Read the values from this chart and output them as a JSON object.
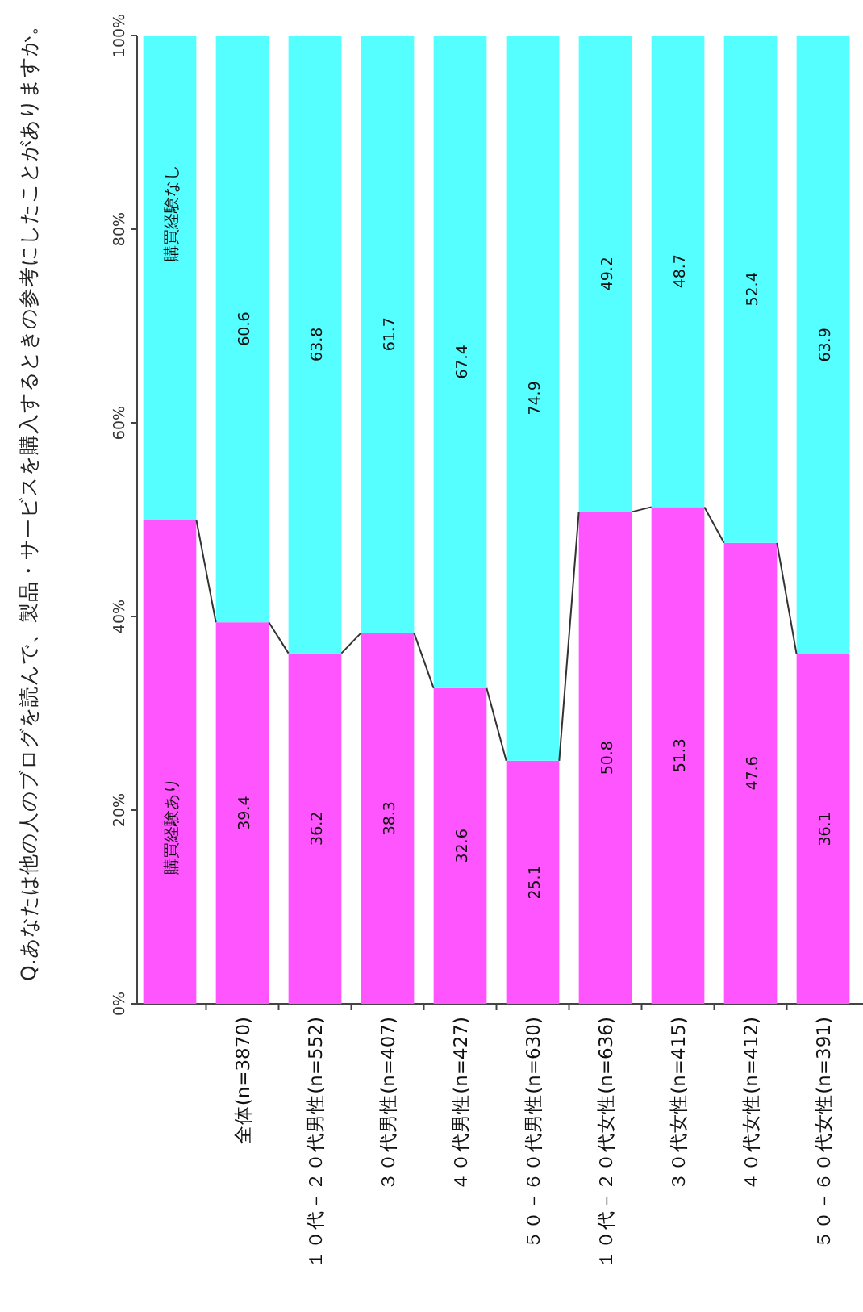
{
  "chart_data": {
    "type": "bar",
    "stacked": true,
    "title": "Q.あなたは他の人のブログを読んで、製品・サービスを購入するときの参考にしたことがありますか。",
    "categories": [
      null,
      "全体(n=3870)",
      "１０代－２０代男性(n=552)",
      "３０代男性(n=407)",
      "４０代男性(n=427)",
      "５０－６０代男性(n=630)",
      "１０代－２０代女性(n=636)",
      "３０代女性(n=415)",
      "４０代女性(n=412)",
      "５０－６０代女性(n=391)"
    ],
    "series": [
      {
        "name": "購買経験あり",
        "color": "#ff55ff",
        "values": [
          50,
          39.4,
          36.2,
          38.3,
          32.6,
          25.1,
          50.8,
          51.3,
          47.6,
          36.1
        ],
        "value_labels": [
          null,
          "39.4",
          "36.2",
          "38.3",
          "32.6",
          "25.1",
          "50.8",
          "51.3",
          "47.6",
          "36.1"
        ]
      },
      {
        "name": "購買経験なし",
        "color": "#55ffff",
        "values": [
          50,
          60.6,
          63.8,
          61.7,
          67.4,
          74.9,
          49.2,
          48.7,
          52.4,
          63.9
        ],
        "value_labels": [
          null,
          "60.6",
          "63.8",
          "61.7",
          "67.4",
          "74.9",
          "49.2",
          "48.7",
          "52.4",
          "63.9"
        ]
      }
    ],
    "ylim": [
      0,
      100
    ],
    "yticks": [
      {
        "value": 0,
        "label": "0%"
      },
      {
        "value": 20,
        "label": "20%"
      },
      {
        "value": 40,
        "label": "40%"
      },
      {
        "value": 60,
        "label": "60%"
      },
      {
        "value": 80,
        "label": "80%"
      },
      {
        "value": 100,
        "label": "100%"
      }
    ],
    "grid": false
  }
}
